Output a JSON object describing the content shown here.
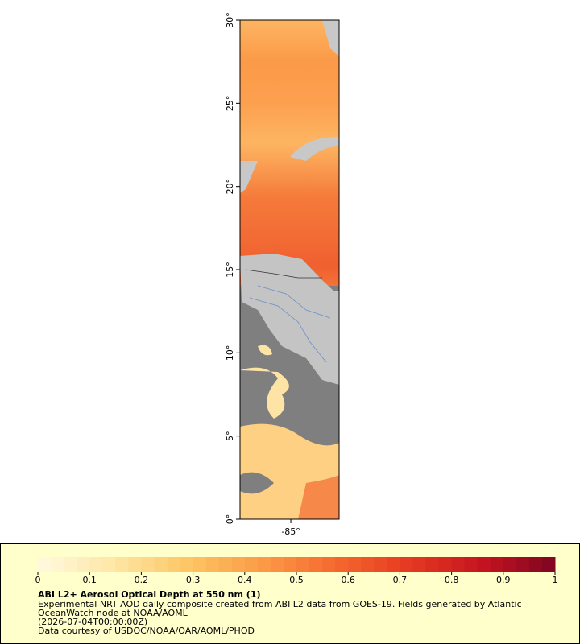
{
  "map": {
    "lat_range": [
      0,
      30
    ],
    "lon_range": [
      -88.05,
      -82.1
    ],
    "lat_ticks": [
      {
        "value": 0,
        "label": "0°"
      },
      {
        "value": 5,
        "label": "5°"
      },
      {
        "value": 10,
        "label": "10°"
      },
      {
        "value": 15,
        "label": "15°"
      },
      {
        "value": 20,
        "label": "20°"
      },
      {
        "value": 25,
        "label": "25°"
      },
      {
        "value": 30,
        "label": "30°"
      }
    ],
    "lon_ticks": [
      {
        "value": -85,
        "label": "-85°"
      }
    ]
  },
  "colorbar": {
    "range": [
      0,
      1
    ],
    "ticks": [
      0,
      0.1,
      0.2,
      0.3,
      0.4,
      0.5,
      0.6,
      0.7,
      0.8,
      0.9,
      1
    ],
    "colors": [
      "#fffadf",
      "#fee7a8",
      "#fdc766",
      "#fc9c48",
      "#f66a2f",
      "#e63a22",
      "#c71420",
      "#7e0522"
    ]
  },
  "legend": {
    "title": "ABI L2+ Aerosol Optical Depth at 550 nm (1)",
    "lines": [
      "Experimental NRT AOD daily composite created from ABI L2 data from GOES-19. Fields generated by Atlantic",
      "OceanWatch node at NOAA/AOML",
      "(2026-07-04T00:00:00Z)",
      "Data courtesy of USDOC/NOAA/OAR/AOML/PHOD"
    ]
  }
}
